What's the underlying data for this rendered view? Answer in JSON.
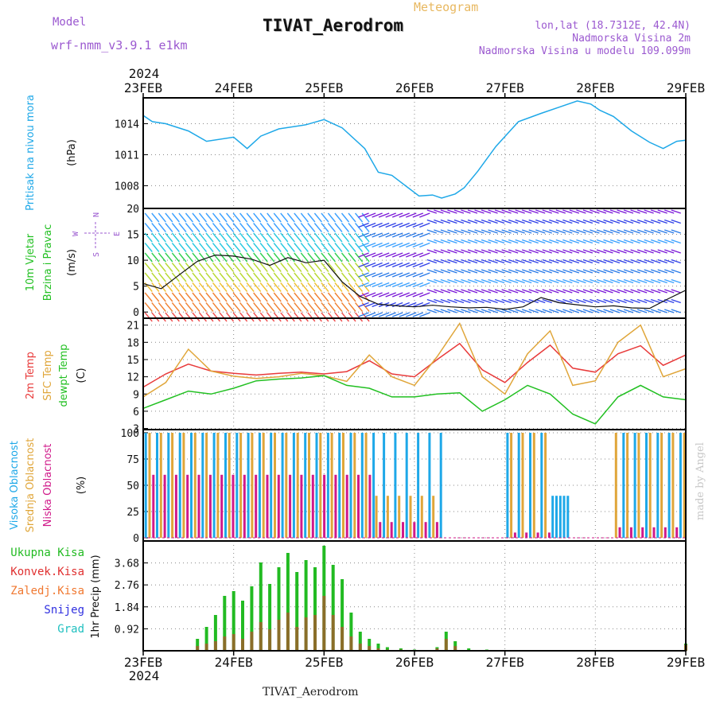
{
  "header": {
    "model_label": "Model",
    "model_name": "wrf-nmm_v3.9.1 e1km",
    "title": "TIVAT_Aerodrom",
    "subtitle": "Meteogram",
    "coords": "lon,lat (18.7312E, 42.4N)",
    "elevation": "Nadmorska Visina 2m",
    "model_elevation": "Nadmorska Visina u modelu 109.099m",
    "footer": "TIVAT_Aerodrom",
    "credit": "made by Angel"
  },
  "colors": {
    "pressure": "#1ea8e8",
    "temp2m": "#e83a3a",
    "sfc": "#e0a63a",
    "dewpt": "#22c022",
    "high_cloud": "#1ea8e8",
    "mid_cloud": "#e0a63a",
    "low_cloud": "#d01a8a",
    "total_precip": "#22bb22",
    "conv_precip": "#e03030",
    "freezing": "#f07830",
    "snow": "#3030e0",
    "hail": "#20c0c0",
    "model_text": "#9b59d0",
    "subtitle_text": "#e8b860"
  },
  "chart_data": [
    {
      "type": "line",
      "panel": "pressure",
      "ylabel": "Pritisak na nivou mora",
      "unit": "(hPa)",
      "x_ticks": [
        "23FEB",
        "24FEB",
        "25FEB",
        "26FEB",
        "27FEB",
        "28FEB",
        "29FEB"
      ],
      "x_year": "2024",
      "y_ticks": [
        1008,
        1011,
        1014
      ],
      "ylim": [
        1005.8,
        1016.5
      ],
      "grid": true,
      "x": [
        0,
        0.1,
        0.25,
        0.5,
        0.7,
        1.0,
        1.15,
        1.3,
        1.5,
        1.8,
        2.0,
        2.2,
        2.45,
        2.6,
        2.75,
        2.9,
        3.05,
        3.2,
        3.3,
        3.45,
        3.55,
        3.7,
        3.9,
        4.15,
        4.4,
        4.6,
        4.8,
        4.95,
        5.05,
        5.2,
        5.4,
        5.6,
        5.75,
        5.9,
        6.0
      ],
      "series": [
        {
          "name": "Pritisak na nivou mora",
          "values": [
            1014.8,
            1014.2,
            1014.0,
            1013.3,
            1012.3,
            1012.7,
            1011.6,
            1012.8,
            1013.5,
            1013.9,
            1014.4,
            1013.6,
            1011.6,
            1009.3,
            1009.0,
            1008.0,
            1007.0,
            1007.1,
            1006.8,
            1007.2,
            1007.8,
            1009.4,
            1011.8,
            1014.2,
            1015.0,
            1015.6,
            1016.2,
            1015.9,
            1015.3,
            1014.7,
            1013.3,
            1012.2,
            1011.6,
            1012.3,
            1012.4
          ]
        }
      ]
    },
    {
      "type": "line",
      "panel": "wind",
      "ylabel": "10m Vjetar Brzina i Pravac",
      "unit": "(m/s)",
      "compass": [
        "N",
        "E",
        "S",
        "W"
      ],
      "y_ticks": [
        0,
        5,
        10,
        15,
        20
      ],
      "ylim": [
        -1.2,
        20
      ],
      "grid": true,
      "x": [
        0,
        0.2,
        0.4,
        0.6,
        0.8,
        1.0,
        1.2,
        1.4,
        1.6,
        1.8,
        2.0,
        2.2,
        2.4,
        2.6,
        2.8,
        3.0,
        3.2,
        3.4,
        3.6,
        3.8,
        4.0,
        4.2,
        4.4,
        4.6,
        4.8,
        5.0,
        5.2,
        5.4,
        5.6,
        5.8,
        6.0
      ],
      "series": [
        {
          "name": "10m wind speed",
          "values": [
            5.5,
            4.5,
            7.2,
            9.8,
            11.0,
            10.8,
            10.2,
            9.0,
            10.5,
            9.5,
            10.0,
            5.8,
            3.0,
            1.5,
            1.2,
            1.0,
            1.3,
            1.0,
            0.8,
            0.9,
            0.5,
            1.0,
            2.8,
            1.8,
            1.4,
            1.0,
            1.2,
            0.8,
            0.7,
            2.5,
            4.2
          ]
        }
      ]
    },
    {
      "type": "line",
      "panel": "temperature",
      "ylabel": [
        "2m Temp",
        "SFC Temp",
        "dewpt Temp"
      ],
      "unit": "(C)",
      "y_ticks": [
        3,
        6,
        9,
        12,
        15,
        18,
        21
      ],
      "ylim": [
        2.8,
        22.2
      ],
      "grid": true,
      "x": [
        0,
        0.25,
        0.5,
        0.75,
        1.0,
        1.25,
        1.5,
        1.75,
        2.0,
        2.25,
        2.5,
        2.75,
        3.0,
        3.25,
        3.5,
        3.75,
        4.0,
        4.25,
        4.5,
        4.75,
        5.0,
        5.25,
        5.5,
        5.75,
        6.0
      ],
      "series": [
        {
          "name": "2m Temp",
          "values": [
            10.2,
            12.5,
            14.2,
            13.0,
            12.6,
            12.3,
            12.6,
            12.8,
            12.5,
            12.9,
            14.8,
            12.5,
            12.0,
            15.0,
            17.8,
            13.2,
            11.0,
            14.5,
            17.5,
            13.5,
            12.8,
            16.0,
            17.4,
            14.0,
            15.8
          ]
        },
        {
          "name": "SFC Temp",
          "values": [
            8.5,
            11.0,
            16.8,
            13.0,
            12.1,
            11.7,
            12.0,
            12.6,
            12.2,
            11.2,
            15.8,
            12.0,
            10.5,
            15.5,
            21.3,
            12.0,
            9.0,
            16.0,
            20.0,
            10.5,
            11.3,
            18.0,
            21.0,
            12.0,
            13.4
          ]
        },
        {
          "name": "dewpt Temp",
          "values": [
            6.5,
            8.0,
            9.5,
            9.0,
            10.0,
            11.3,
            11.6,
            11.8,
            12.2,
            10.5,
            10.0,
            8.5,
            8.5,
            9.0,
            9.2,
            6.0,
            8.0,
            10.5,
            9.0,
            5.5,
            3.8,
            8.5,
            10.5,
            8.5,
            8.0
          ]
        }
      ]
    },
    {
      "type": "bar",
      "panel": "clouds",
      "ylabel": [
        "Visoka Oblacnost",
        "Srednja Oblacnost",
        "Niska Oblacnost"
      ],
      "unit": "(%)",
      "y_ticks": [
        0,
        25,
        50,
        75,
        100
      ],
      "ylim": [
        -3,
        103
      ],
      "grid": true,
      "layers": [
        "Visoka Oblacnost",
        "Srednja Oblacnost",
        "Niska Oblacnost"
      ],
      "cloud_periods": [
        {
          "from": 0.0,
          "to": 2.55,
          "high": 100,
          "mid": 100,
          "low": 60
        },
        {
          "from": 2.55,
          "to": 3.3,
          "high": 100,
          "mid": 40,
          "low": 15
        },
        {
          "from": 3.3,
          "to": 4.0,
          "high": 0,
          "mid": 0,
          "low": 0
        },
        {
          "from": 4.0,
          "to": 4.5,
          "high": 100,
          "mid": 100,
          "low": 5
        },
        {
          "from": 4.5,
          "to": 4.7,
          "high": 40,
          "mid": 0,
          "low": 0
        },
        {
          "from": 4.7,
          "to": 5.2,
          "high": 0,
          "mid": 0,
          "low": 0
        },
        {
          "from": 5.2,
          "to": 6.0,
          "high": 100,
          "mid": 100,
          "low": 10
        }
      ]
    },
    {
      "type": "bar",
      "panel": "precipitation",
      "ylabel": "1hr Precip (mm)",
      "legend": [
        "Ukupna Kisa",
        "Konvek.Kisa",
        "Zaledj.Kisa",
        "Snijeg",
        "Grad"
      ],
      "y_ticks": [
        0.92,
        1.84,
        2.76,
        3.68
      ],
      "ylim": [
        0,
        4.6
      ],
      "grid": true,
      "x": [
        0.6,
        0.7,
        0.8,
        0.9,
        1.0,
        1.1,
        1.2,
        1.3,
        1.4,
        1.5,
        1.6,
        1.7,
        1.8,
        1.9,
        2.0,
        2.1,
        2.2,
        2.3,
        2.4,
        2.5,
        2.6,
        2.7,
        2.85,
        3.0,
        3.25,
        3.35,
        3.45,
        3.6,
        3.8,
        6.0
      ],
      "series": [
        {
          "name": "Ukupna Kisa",
          "values": [
            0.5,
            1.0,
            1.5,
            2.3,
            2.5,
            2.1,
            2.7,
            3.7,
            2.8,
            3.5,
            4.1,
            3.3,
            3.8,
            3.5,
            4.4,
            3.6,
            3.0,
            1.6,
            0.8,
            0.5,
            0.3,
            0.15,
            0.1,
            0.05,
            0.15,
            0.8,
            0.4,
            0.1,
            0.05,
            0.3
          ]
        },
        {
          "name": "Konvek.Kisa",
          "values": [
            0.2,
            0.3,
            0.4,
            0.6,
            0.7,
            0.5,
            0.8,
            1.2,
            0.9,
            1.3,
            1.6,
            1.0,
            1.4,
            1.5,
            2.3,
            1.5,
            1.0,
            0.6,
            0.3,
            0.2,
            0.1,
            0.05,
            0.05,
            0.0,
            0.1,
            0.5,
            0.2,
            0.0,
            0.0,
            0.25
          ]
        }
      ]
    }
  ]
}
